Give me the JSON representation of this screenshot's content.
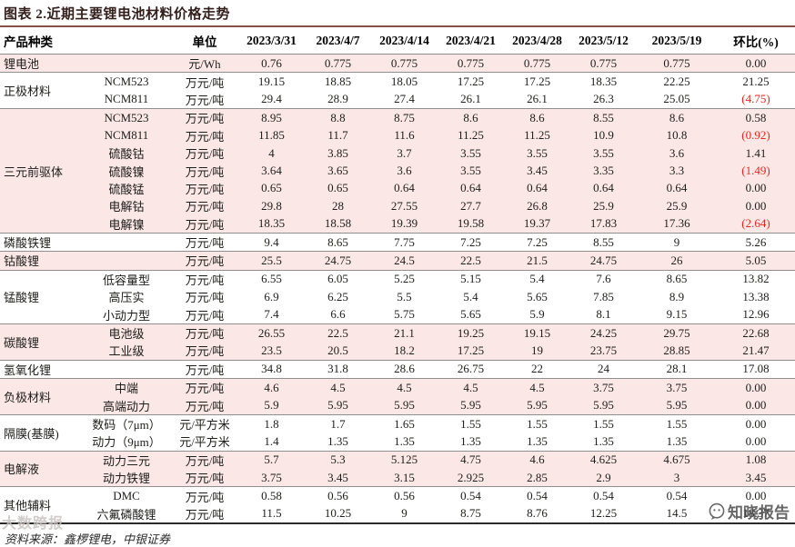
{
  "title": "图表 2.近期主要锂电池材料价格走势",
  "footer": "资料来源：鑫椤锂电，中银证券",
  "watermarks": {
    "left_text": "大数跨报",
    "right_text": "知晓报告"
  },
  "colors": {
    "shaded_row": "#fbe8e6",
    "negative": "#e0281e",
    "title_rule": "#8d4f4a"
  },
  "table": {
    "headers": [
      "产品种类",
      "单位",
      "2023/3/31",
      "2023/4/7",
      "2023/4/14",
      "2023/4/21",
      "2023/4/28",
      "2023/5/12",
      "2023/5/19",
      "环比(%)"
    ],
    "groups": [
      {
        "category": "锂电池",
        "shaded": true,
        "rows": [
          {
            "sub": "",
            "unit": "元/Wh",
            "values": [
              "0.76",
              "0.775",
              "0.775",
              "0.775",
              "0.775",
              "0.775",
              "0.775"
            ],
            "change": "0.00"
          }
        ]
      },
      {
        "category": "正极材料",
        "shaded": false,
        "rows": [
          {
            "sub": "NCM523",
            "unit": "万元/吨",
            "values": [
              "19.15",
              "18.85",
              "18.05",
              "17.25",
              "17.25",
              "18.35",
              "22.25"
            ],
            "change": "21.25"
          },
          {
            "sub": "NCM811",
            "unit": "万元/吨",
            "values": [
              "29.4",
              "28.9",
              "27.4",
              "26.1",
              "26.1",
              "26.3",
              "25.05"
            ],
            "change": "(4.75)"
          }
        ]
      },
      {
        "category": "三元前驱体",
        "shaded": true,
        "rows": [
          {
            "sub": "NCM523",
            "unit": "万元/吨",
            "values": [
              "8.95",
              "8.8",
              "8.75",
              "8.6",
              "8.6",
              "8.55",
              "8.6"
            ],
            "change": "0.58"
          },
          {
            "sub": "NCM811",
            "unit": "万元/吨",
            "values": [
              "11.85",
              "11.7",
              "11.6",
              "11.25",
              "11.25",
              "10.9",
              "10.8"
            ],
            "change": "(0.92)"
          },
          {
            "sub": "硫酸钴",
            "unit": "万元/吨",
            "values": [
              "4",
              "3.85",
              "3.7",
              "3.55",
              "3.55",
              "3.55",
              "3.6"
            ],
            "change": "1.41"
          },
          {
            "sub": "硫酸镍",
            "unit": "万元/吨",
            "values": [
              "3.64",
              "3.65",
              "3.6",
              "3.55",
              "3.45",
              "3.35",
              "3.3"
            ],
            "change": "(1.49)"
          },
          {
            "sub": "硫酸锰",
            "unit": "万元/吨",
            "values": [
              "0.65",
              "0.65",
              "0.64",
              "0.64",
              "0.64",
              "0.64",
              "0.64"
            ],
            "change": "0.00"
          },
          {
            "sub": "电解钴",
            "unit": "万元/吨",
            "values": [
              "29.8",
              "28",
              "27.55",
              "27.7",
              "26.8",
              "25.9",
              "25.9"
            ],
            "change": "0.00"
          },
          {
            "sub": "电解镍",
            "unit": "万元/吨",
            "values": [
              "18.35",
              "18.58",
              "19.39",
              "19.58",
              "19.37",
              "17.83",
              "17.36"
            ],
            "change": "(2.64)"
          }
        ]
      },
      {
        "category": "磷酸铁锂",
        "shaded": false,
        "rows": [
          {
            "sub": "",
            "unit": "万元/吨",
            "values": [
              "9.4",
              "8.65",
              "7.75",
              "7.25",
              "7.25",
              "8.55",
              "9"
            ],
            "change": "5.26"
          }
        ]
      },
      {
        "category": "钴酸锂",
        "shaded": true,
        "rows": [
          {
            "sub": "",
            "unit": "万元/吨",
            "values": [
              "25.5",
              "24.75",
              "24.5",
              "22.5",
              "21.5",
              "24.75",
              "26"
            ],
            "change": "5.05"
          }
        ]
      },
      {
        "category": "锰酸锂",
        "shaded": false,
        "rows": [
          {
            "sub": "低容量型",
            "unit": "万元/吨",
            "values": [
              "6.55",
              "6.05",
              "5.25",
              "5.15",
              "5.4",
              "7.6",
              "8.65"
            ],
            "change": "13.82"
          },
          {
            "sub": "高压实",
            "unit": "万元/吨",
            "values": [
              "6.9",
              "6.25",
              "5.5",
              "5.4",
              "5.65",
              "7.85",
              "8.9"
            ],
            "change": "13.38"
          },
          {
            "sub": "小动力型",
            "unit": "万元/吨",
            "values": [
              "7.4",
              "6.6",
              "5.75",
              "5.65",
              "5.9",
              "8.1",
              "9.15"
            ],
            "change": "12.96"
          }
        ]
      },
      {
        "category": "碳酸锂",
        "shaded": true,
        "rows": [
          {
            "sub": "电池级",
            "unit": "万元/吨",
            "values": [
              "26.55",
              "22.5",
              "21.1",
              "19.25",
              "19.15",
              "24.25",
              "29.75"
            ],
            "change": "22.68"
          },
          {
            "sub": "工业级",
            "unit": "万元/吨",
            "values": [
              "23.5",
              "20.5",
              "18.2",
              "17.25",
              "19",
              "23.75",
              "28.85"
            ],
            "change": "21.47"
          }
        ]
      },
      {
        "category": "氢氧化锂",
        "shaded": false,
        "rows": [
          {
            "sub": "",
            "unit": "万元/吨",
            "values": [
              "34.8",
              "31.8",
              "28.6",
              "26.75",
              "22",
              "24",
              "28.1"
            ],
            "change": "17.08"
          }
        ]
      },
      {
        "category": "负极材料",
        "shaded": true,
        "rows": [
          {
            "sub": "中端",
            "unit": "万元/吨",
            "values": [
              "4.6",
              "4.5",
              "4.5",
              "4.5",
              "4.5",
              "3.75",
              "3.75"
            ],
            "change": "0.00"
          },
          {
            "sub": "高端动力",
            "unit": "万元/吨",
            "values": [
              "5.9",
              "5.95",
              "5.95",
              "5.95",
              "5.95",
              "5.95",
              "5.95"
            ],
            "change": "0.00"
          }
        ]
      },
      {
        "category": "隔膜(基膜)",
        "shaded": false,
        "rows": [
          {
            "sub": "数码（7μm）",
            "unit": "元/平方米",
            "values": [
              "1.8",
              "1.7",
              "1.65",
              "1.55",
              "1.55",
              "1.55",
              "1.55"
            ],
            "change": "0.00"
          },
          {
            "sub": "动力（9μm）",
            "unit": "元/平方米",
            "values": [
              "1.4",
              "1.35",
              "1.35",
              "1.35",
              "1.35",
              "1.35",
              "1.35"
            ],
            "change": "0.00"
          }
        ]
      },
      {
        "category": "电解液",
        "shaded": true,
        "rows": [
          {
            "sub": "动力三元",
            "unit": "万元/吨",
            "values": [
              "5.7",
              "5.3",
              "5.125",
              "4.75",
              "4.6",
              "4.625",
              "4.675"
            ],
            "change": "1.08"
          },
          {
            "sub": "动力铁锂",
            "unit": "万元/吨",
            "values": [
              "3.75",
              "3.45",
              "3.15",
              "2.925",
              "2.85",
              "2.9",
              "3"
            ],
            "change": "3.45"
          }
        ]
      },
      {
        "category": "其他辅料",
        "shaded": false,
        "rows": [
          {
            "sub": "DMC",
            "unit": "万元/吨",
            "values": [
              "0.58",
              "0.56",
              "0.56",
              "0.54",
              "0.54",
              "0.54",
              "0.54"
            ],
            "change": "0.00"
          },
          {
            "sub": "六氟磷酸锂",
            "unit": "万元/吨",
            "values": [
              "11.5",
              "10.25",
              "9",
              "8.75",
              "8.76",
              "12.25",
              "14.5"
            ],
            "change": "18.37"
          }
        ]
      }
    ]
  }
}
